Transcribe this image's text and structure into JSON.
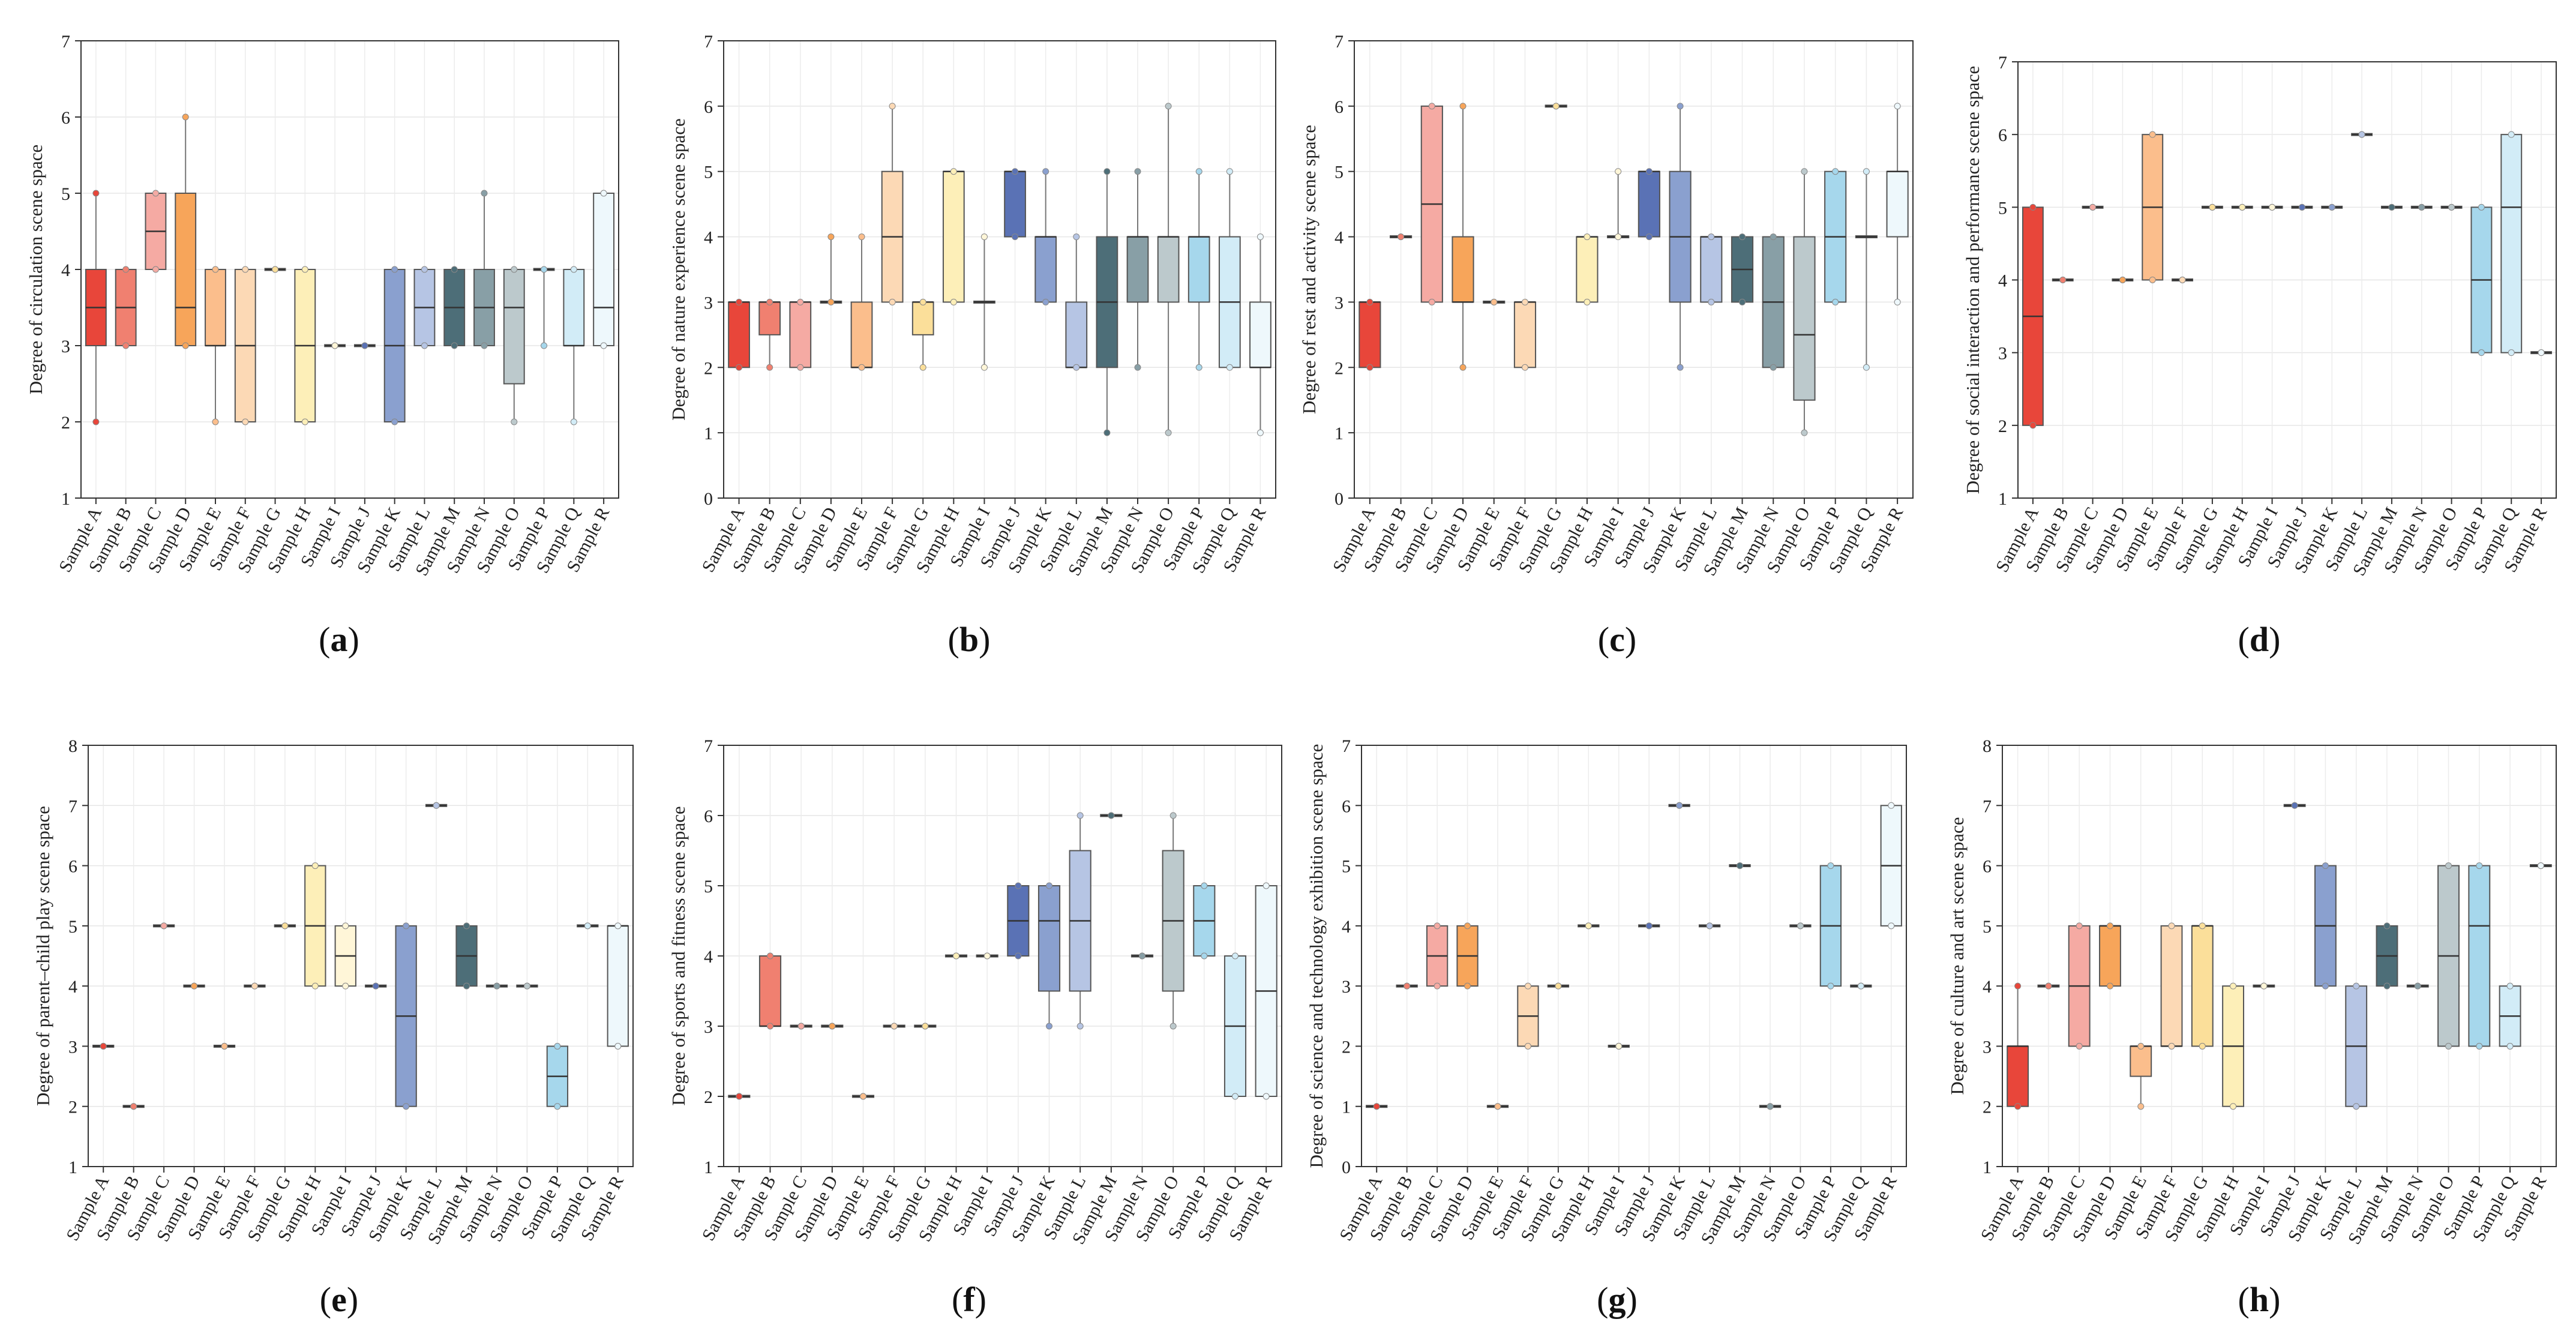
{
  "figure": {
    "panels_order": [
      "a",
      "b",
      "c",
      "d",
      "e",
      "f",
      "g",
      "h"
    ]
  },
  "colors": [
    "#E8463A",
    "#F08070",
    "#F5AAA3",
    "#F7A55A",
    "#FBBE8C",
    "#FCD9B5",
    "#FBDF9A",
    "#FDEFB8",
    "#FFF6D8",
    "#5A72B5",
    "#8AA0CF",
    "#B6C5E4",
    "#4D6E78",
    "#889FA6",
    "#BCC9CC",
    "#A6D7EC",
    "#D2ECF7",
    "#EEF8FC"
  ],
  "chart_data": [
    {
      "type": "box",
      "panel": "a",
      "caption": "(a)",
      "ylabel": "Degree of circulation scene space",
      "ylim": [
        1,
        7
      ],
      "yticks": [
        1,
        2,
        3,
        4,
        5,
        6,
        7
      ],
      "grid": true,
      "categories": [
        "Sample A",
        "Sample B",
        "Sample C",
        "Sample D",
        "Sample E",
        "Sample F",
        "Sample G",
        "Sample H",
        "Sample I",
        "Sample J",
        "Sample K",
        "Sample L",
        "Sample M",
        "Sample N",
        "Sample O",
        "Sample P",
        "Sample Q",
        "Sample R"
      ],
      "boxes": [
        [
          2,
          3,
          3.5,
          4,
          5
        ],
        [
          3,
          3,
          3.5,
          4,
          4
        ],
        [
          4,
          4,
          4.5,
          5,
          5
        ],
        [
          3,
          3,
          3.5,
          5,
          6
        ],
        [
          2,
          3,
          3,
          4,
          4
        ],
        [
          2,
          2,
          3,
          4,
          4
        ],
        [
          4,
          4,
          4,
          4,
          4
        ],
        [
          2,
          2,
          3,
          4,
          4
        ],
        [
          3,
          3,
          3,
          3,
          3
        ],
        [
          3,
          3,
          3,
          3,
          3
        ],
        [
          2,
          2,
          3,
          4,
          4
        ],
        [
          3,
          3,
          3.5,
          4,
          4
        ],
        [
          3,
          3,
          3.5,
          4,
          4
        ],
        [
          3,
          3,
          3.5,
          4,
          5
        ],
        [
          2,
          2.5,
          3.5,
          4,
          4
        ],
        [
          3,
          4,
          4,
          4,
          4
        ],
        [
          2,
          3,
          3,
          4,
          4
        ],
        [
          3,
          3,
          3.5,
          5,
          5
        ]
      ]
    },
    {
      "type": "box",
      "panel": "b",
      "caption": "(b)",
      "ylabel": "Degree of nature experience scene space",
      "ylim": [
        0,
        7
      ],
      "yticks": [
        0,
        1,
        2,
        3,
        4,
        5,
        6,
        7
      ],
      "grid": true,
      "categories": [
        "Sample A",
        "Sample B",
        "Sample C",
        "Sample D",
        "Sample E",
        "Sample F",
        "Sample G",
        "Sample H",
        "Sample I",
        "Sample J",
        "Sample K",
        "Sample L",
        "Sample M",
        "Sample N",
        "Sample O",
        "Sample P",
        "Sample Q",
        "Sample R"
      ],
      "boxes": [
        [
          2,
          2,
          3,
          3,
          3
        ],
        [
          2,
          2.5,
          3,
          3,
          3
        ],
        [
          2,
          2,
          3,
          3,
          3
        ],
        [
          3,
          3,
          3,
          3,
          4
        ],
        [
          2,
          2,
          2,
          3,
          4
        ],
        [
          3,
          3,
          4,
          5,
          6
        ],
        [
          2,
          2.5,
          3,
          3,
          3
        ],
        [
          3,
          3,
          5,
          5,
          5
        ],
        [
          2,
          3,
          3,
          3,
          4
        ],
        [
          4,
          4,
          5,
          5,
          5
        ],
        [
          3,
          3,
          4,
          4,
          5
        ],
        [
          2,
          2,
          2,
          3,
          4
        ],
        [
          1,
          2,
          3,
          4,
          5
        ],
        [
          2,
          3,
          4,
          4,
          5
        ],
        [
          1,
          3,
          4,
          4,
          6
        ],
        [
          2,
          3,
          4,
          4,
          5
        ],
        [
          2,
          2,
          3,
          4,
          5
        ],
        [
          1,
          2,
          2,
          3,
          4
        ]
      ]
    },
    {
      "type": "box",
      "panel": "c",
      "caption": "(c)",
      "ylabel": "Degree of rest and activity scene space",
      "ylim": [
        0,
        7
      ],
      "yticks": [
        0,
        1,
        2,
        3,
        4,
        5,
        6,
        7
      ],
      "grid": true,
      "categories": [
        "Sample A",
        "Sample B",
        "Sample C",
        "Sample D",
        "Sample E",
        "Sample F",
        "Sample G",
        "Sample H",
        "Sample I",
        "Sample J",
        "Sample K",
        "Sample L",
        "Sample M",
        "Sample N",
        "Sample O",
        "Sample P",
        "Sample Q",
        "Sample R"
      ],
      "boxes": [
        [
          2,
          2,
          3,
          3,
          3
        ],
        [
          4,
          4,
          4,
          4,
          4
        ],
        [
          3,
          3,
          4.5,
          6,
          6
        ],
        [
          2,
          3,
          3,
          4,
          6
        ],
        [
          3,
          3,
          3,
          3,
          3
        ],
        [
          2,
          2,
          3,
          3,
          3
        ],
        [
          6,
          6,
          6,
          6,
          6
        ],
        [
          3,
          3,
          4,
          4,
          4
        ],
        [
          4,
          4,
          4,
          4,
          5
        ],
        [
          4,
          4,
          5,
          5,
          5
        ],
        [
          2,
          3,
          4,
          5,
          6
        ],
        [
          3,
          3,
          4,
          4,
          4
        ],
        [
          3,
          3,
          3.5,
          4,
          4
        ],
        [
          2,
          2,
          3,
          4,
          4
        ],
        [
          1,
          1.5,
          2.5,
          4,
          5
        ],
        [
          3,
          3,
          4,
          5,
          5
        ],
        [
          2,
          4,
          4,
          4,
          5
        ],
        [
          3,
          4,
          5,
          5,
          6
        ]
      ]
    },
    {
      "type": "box",
      "panel": "d",
      "caption": "(d)",
      "ylabel": "Degree of social interaction and performance scene space",
      "ylim": [
        1,
        7
      ],
      "yticks": [
        1,
        2,
        3,
        4,
        5,
        6,
        7
      ],
      "grid": true,
      "categories": [
        "Sample A",
        "Sample B",
        "Sample C",
        "Sample D",
        "Sample E",
        "Sample F",
        "Sample G",
        "Sample H",
        "Sample I",
        "Sample J",
        "Sample K",
        "Sample L",
        "Sample M",
        "Sample N",
        "Sample O",
        "Sample P",
        "Sample Q",
        "Sample R"
      ],
      "boxes": [
        [
          2,
          2,
          3.5,
          5,
          5
        ],
        [
          4,
          4,
          4,
          4,
          4
        ],
        [
          5,
          5,
          5,
          5,
          5
        ],
        [
          4,
          4,
          4,
          4,
          4
        ],
        [
          4,
          4,
          5,
          6,
          6
        ],
        [
          4,
          4,
          4,
          4,
          4
        ],
        [
          5,
          5,
          5,
          5,
          5
        ],
        [
          5,
          5,
          5,
          5,
          5
        ],
        [
          5,
          5,
          5,
          5,
          5
        ],
        [
          5,
          5,
          5,
          5,
          5
        ],
        [
          5,
          5,
          5,
          5,
          5
        ],
        [
          6,
          6,
          6,
          6,
          6
        ],
        [
          5,
          5,
          5,
          5,
          5
        ],
        [
          5,
          5,
          5,
          5,
          5
        ],
        [
          5,
          5,
          5,
          5,
          5
        ],
        [
          3,
          3,
          4,
          5,
          5
        ],
        [
          3,
          3,
          5,
          6,
          6
        ],
        [
          3,
          3,
          3,
          3,
          3
        ]
      ]
    },
    {
      "type": "box",
      "panel": "e",
      "caption": "(e)",
      "ylabel": "Degree of parent–child play scene space",
      "ylim": [
        1,
        8
      ],
      "yticks": [
        1,
        2,
        3,
        4,
        5,
        6,
        7,
        8
      ],
      "grid": true,
      "categories": [
        "Sample A",
        "Sample B",
        "Sample C",
        "Sample D",
        "Sample E",
        "Sample F",
        "Sample G",
        "Sample H",
        "Sample I",
        "Sample J",
        "Sample K",
        "Sample L",
        "Sample M",
        "Sample N",
        "Sample O",
        "Sample P",
        "Sample Q",
        "Sample R"
      ],
      "boxes": [
        [
          3,
          3,
          3,
          3,
          3
        ],
        [
          2,
          2,
          2,
          2,
          2
        ],
        [
          5,
          5,
          5,
          5,
          5
        ],
        [
          4,
          4,
          4,
          4,
          4
        ],
        [
          3,
          3,
          3,
          3,
          3
        ],
        [
          4,
          4,
          4,
          4,
          4
        ],
        [
          5,
          5,
          5,
          5,
          5
        ],
        [
          4,
          4,
          5,
          6,
          6
        ],
        [
          4,
          4,
          4.5,
          5,
          5
        ],
        [
          4,
          4,
          4,
          4,
          4
        ],
        [
          2,
          2,
          3.5,
          5,
          5
        ],
        [
          7,
          7,
          7,
          7,
          7
        ],
        [
          4,
          4,
          4.5,
          5,
          5
        ],
        [
          4,
          4,
          4,
          4,
          4
        ],
        [
          4,
          4,
          4,
          4,
          4
        ],
        [
          2,
          2,
          2.5,
          3,
          3
        ],
        [
          5,
          5,
          5,
          5,
          5
        ],
        [
          3,
          3,
          5,
          5,
          5
        ]
      ]
    },
    {
      "type": "box",
      "panel": "f",
      "caption": "(f)",
      "ylabel": "Degree of  sports and fitness scene space",
      "ylim": [
        1,
        7
      ],
      "yticks": [
        1,
        2,
        3,
        4,
        5,
        6,
        7
      ],
      "grid": true,
      "categories": [
        "Sample A",
        "Sample B",
        "Sample C",
        "Sample D",
        "Sample E",
        "Sample F",
        "Sample G",
        "Sample H",
        "Sample I",
        "Sample J",
        "Sample K",
        "Sample L",
        "Sample M",
        "Sample N",
        "Sample O",
        "Sample P",
        "Sample Q",
        "Sample R"
      ],
      "boxes": [
        [
          2,
          2,
          2,
          2,
          2
        ],
        [
          3,
          3,
          3,
          4,
          4
        ],
        [
          3,
          3,
          3,
          3,
          3
        ],
        [
          3,
          3,
          3,
          3,
          3
        ],
        [
          2,
          2,
          2,
          2,
          2
        ],
        [
          3,
          3,
          3,
          3,
          3
        ],
        [
          3,
          3,
          3,
          3,
          3
        ],
        [
          4,
          4,
          4,
          4,
          4
        ],
        [
          4,
          4,
          4,
          4,
          4
        ],
        [
          4,
          4,
          4.5,
          5,
          5
        ],
        [
          3,
          3.5,
          4.5,
          5,
          5
        ],
        [
          3,
          3.5,
          4.5,
          5.5,
          6
        ],
        [
          6,
          6,
          6,
          6,
          6
        ],
        [
          4,
          4,
          4,
          4,
          4
        ],
        [
          3,
          3.5,
          4.5,
          5.5,
          6
        ],
        [
          4,
          4,
          4.5,
          5,
          5
        ],
        [
          2,
          2,
          3,
          4,
          4
        ],
        [
          2,
          2,
          3.5,
          5,
          5
        ]
      ]
    },
    {
      "type": "box",
      "panel": "g",
      "caption": "(g)",
      "ylabel": "Degree of science and technology exhibition scene space",
      "ylim": [
        0,
        7
      ],
      "yticks": [
        0,
        1,
        2,
        3,
        4,
        5,
        6,
        7
      ],
      "grid": true,
      "categories": [
        "Sample A",
        "Sample B",
        "Sample C",
        "Sample D",
        "Sample E",
        "Sample F",
        "Sample G",
        "Sample H",
        "Sample I",
        "Sample J",
        "Sample K",
        "Sample L",
        "Sample M",
        "Sample N",
        "Sample O",
        "Sample P",
        "Sample Q",
        "Sample R"
      ],
      "boxes": [
        [
          1,
          1,
          1,
          1,
          1
        ],
        [
          3,
          3,
          3,
          3,
          3
        ],
        [
          3,
          3,
          3.5,
          4,
          4
        ],
        [
          3,
          3,
          3.5,
          4,
          4
        ],
        [
          1,
          1,
          1,
          1,
          1
        ],
        [
          2,
          2,
          2.5,
          3,
          3
        ],
        [
          3,
          3,
          3,
          3,
          3
        ],
        [
          4,
          4,
          4,
          4,
          4
        ],
        [
          2,
          2,
          2,
          2,
          2
        ],
        [
          4,
          4,
          4,
          4,
          4
        ],
        [
          6,
          6,
          6,
          6,
          6
        ],
        [
          4,
          4,
          4,
          4,
          4
        ],
        [
          5,
          5,
          5,
          5,
          5
        ],
        [
          1,
          1,
          1,
          1,
          1
        ],
        [
          4,
          4,
          4,
          4,
          4
        ],
        [
          3,
          3,
          4,
          5,
          5
        ],
        [
          3,
          3,
          3,
          3,
          3
        ],
        [
          4,
          4,
          5,
          6,
          6
        ]
      ]
    },
    {
      "type": "box",
      "panel": "h",
      "caption": "(h)",
      "ylabel": "Degree of culture and art scene space",
      "ylim": [
        1,
        8
      ],
      "yticks": [
        1,
        2,
        3,
        4,
        5,
        6,
        7,
        8
      ],
      "grid": true,
      "categories": [
        "Sample A",
        "Sample B",
        "Sample C",
        "Sample D",
        "Sample E",
        "Sample F",
        "Sample G",
        "Sample H",
        "Sample I",
        "Sample J",
        "Sample K",
        "Sample L",
        "Sample M",
        "Sample N",
        "Sample O",
        "Sample P",
        "Sample Q",
        "Sample R"
      ],
      "boxes": [
        [
          2,
          2,
          3,
          3,
          4
        ],
        [
          4,
          4,
          4,
          4,
          4
        ],
        [
          3,
          3,
          4,
          5,
          5
        ],
        [
          4,
          4,
          5,
          5,
          5
        ],
        [
          2,
          2.5,
          3,
          3,
          3
        ],
        [
          3,
          3,
          3,
          5,
          5
        ],
        [
          3,
          3,
          5,
          5,
          5
        ],
        [
          2,
          2,
          3,
          4,
          4
        ],
        [
          4,
          4,
          4,
          4,
          4
        ],
        [
          7,
          7,
          7,
          7,
          7
        ],
        [
          4,
          4,
          5,
          6,
          6
        ],
        [
          2,
          2,
          3,
          4,
          4
        ],
        [
          4,
          4,
          4.5,
          5,
          5
        ],
        [
          4,
          4,
          4,
          4,
          4
        ],
        [
          3,
          3,
          4.5,
          6,
          6
        ],
        [
          3,
          3,
          5,
          6,
          6
        ],
        [
          3,
          3,
          3.5,
          4,
          4
        ],
        [
          6,
          6,
          6,
          6,
          6
        ]
      ]
    }
  ]
}
